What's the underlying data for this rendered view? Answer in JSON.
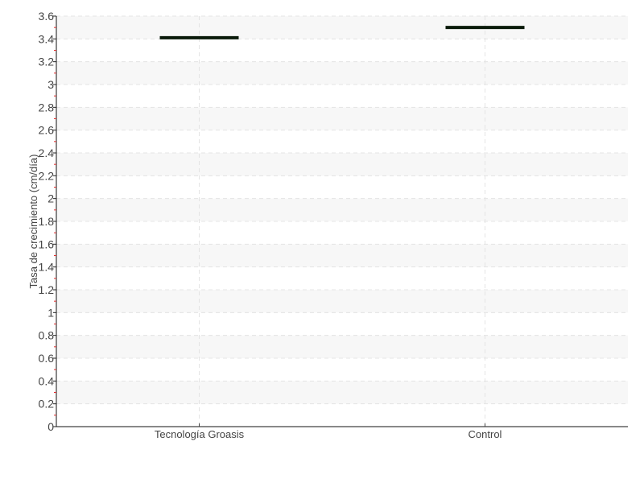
{
  "chart_data": {
    "type": "box",
    "title": "",
    "xlabel": "",
    "ylabel": "Tasa de crecimiento (cm/día)",
    "categories": [
      "Tecnología Groasis",
      "Control"
    ],
    "values": [
      3.41,
      3.5
    ],
    "ylim": [
      0,
      3.6
    ],
    "yticks": [
      0,
      0.2,
      0.4,
      0.6,
      0.8,
      1,
      1.2,
      1.4,
      1.6,
      1.8,
      2,
      2.2,
      2.4,
      2.6,
      2.8,
      3,
      3.2,
      3.4,
      3.6
    ],
    "ytick_labels": [
      "0",
      "0.2",
      "0.4",
      "0.6",
      "0.8",
      "1",
      "1.2",
      "1.4",
      "1.6",
      "1.8",
      "2",
      "2.2",
      "2.4",
      "2.6",
      "2.8",
      "3",
      "3.2",
      "3.4",
      "3.6"
    ],
    "grid": true,
    "alternating_bands": true,
    "colors": {
      "mark": "#0a1a0a",
      "band": "#f7f7f7",
      "grid": "#e4e4e4",
      "minor_tick": "#e03030"
    }
  }
}
